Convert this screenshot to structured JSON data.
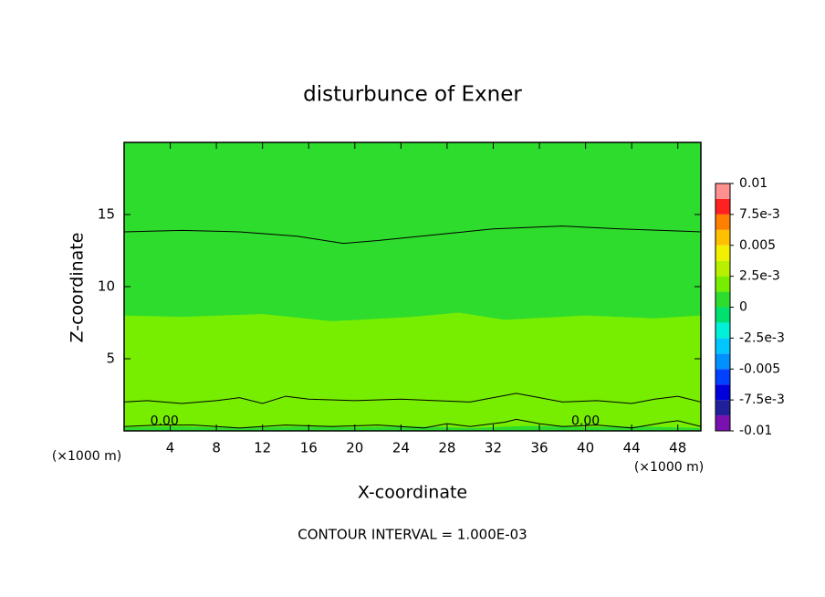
{
  "chart_data": {
    "type": "contour",
    "title": "disturbunce of Exner",
    "x_label": "X-coordinate",
    "y_label": "Z-coordinate",
    "x_unit": "(×1000 m)",
    "footer": "CONTOUR INTERVAL = 1.000E-03",
    "xlim": [
      0,
      50
    ],
    "ylim": [
      0,
      20
    ],
    "xticks": [
      4,
      8,
      12,
      16,
      20,
      24,
      28,
      32,
      36,
      40,
      44,
      48
    ],
    "yticks": [
      5,
      10,
      15
    ],
    "colorbar": {
      "levels": [
        -0.01,
        -0.00875,
        -0.0075,
        -0.00625,
        -0.005,
        -0.00375,
        -0.0025,
        -0.00125,
        0,
        0.00125,
        0.0025,
        0.00375,
        0.005,
        0.00625,
        0.0075,
        0.00875,
        0.01
      ],
      "colors": [
        "#7a10b0",
        "#20209a",
        "#0000dd",
        "#0040ff",
        "#0090ff",
        "#00c8ff",
        "#00f0d8",
        "#00e070",
        "#2edc2e",
        "#77ee00",
        "#b8f000",
        "#f0f000",
        "#ffc000",
        "#ff8000",
        "#ff2020",
        "#ff9090"
      ],
      "ticks": [
        0.01,
        {
          "value": 0.0075,
          "label": "7.5e-3"
        },
        0.005,
        {
          "value": 0.0025,
          "label": "2.5e-3"
        },
        0,
        {
          "value": -0.0025,
          "label": "-2.5e-3"
        },
        -0.005,
        {
          "value": -0.0075,
          "label": "-7.5e-3"
        },
        -0.01
      ]
    },
    "regions": [
      {
        "value": 0.0005,
        "x": [
          0,
          50,
          50,
          0
        ],
        "y": [
          0,
          0,
          20,
          20
        ]
      },
      {
        "value": 0.0018,
        "x": [
          0,
          5,
          12,
          18,
          25,
          29,
          33,
          40,
          46,
          50,
          50,
          0
        ],
        "y": [
          8.0,
          7.9,
          8.1,
          7.6,
          7.9,
          8.2,
          7.7,
          8.0,
          7.8,
          8.0,
          0,
          0
        ]
      },
      {
        "value": 0.0005,
        "x": [
          0,
          5,
          10,
          15,
          20,
          25,
          30,
          35,
          40,
          45,
          50,
          50,
          0
        ],
        "y": [
          0.25,
          0.3,
          0.2,
          0.3,
          0.25,
          0.3,
          0.2,
          0.35,
          0.25,
          0.3,
          0.2,
          0,
          0
        ]
      }
    ],
    "contours": [
      {
        "x": [
          0,
          5,
          10,
          15,
          19,
          22,
          27,
          32,
          38,
          43,
          50
        ],
        "y": [
          13.8,
          13.9,
          13.8,
          13.5,
          13.0,
          13.2,
          13.6,
          14.0,
          14.2,
          14.0,
          13.8
        ]
      },
      {
        "x": [
          0,
          2,
          5,
          8,
          10,
          12,
          14,
          16,
          20,
          24,
          27,
          30,
          32,
          34,
          36,
          38,
          41,
          44,
          46,
          48,
          50
        ],
        "y": [
          2.0,
          2.1,
          1.9,
          2.1,
          2.3,
          1.9,
          2.4,
          2.2,
          2.1,
          2.2,
          2.1,
          2.0,
          2.3,
          2.6,
          2.3,
          2.0,
          2.1,
          1.9,
          2.2,
          2.4,
          2.0
        ]
      },
      {
        "x": [
          0,
          3,
          6,
          10,
          14,
          18,
          22,
          26,
          28,
          30,
          33,
          34,
          36,
          38,
          41,
          44,
          47,
          48,
          50
        ],
        "y": [
          0.3,
          0.4,
          0.4,
          0.2,
          0.4,
          0.3,
          0.4,
          0.2,
          0.5,
          0.3,
          0.6,
          0.8,
          0.5,
          0.3,
          0.4,
          0.2,
          0.6,
          0.7,
          0.3
        ]
      }
    ],
    "contour_labels": [
      {
        "x": 3.5,
        "y": 0.35,
        "level": {
          "value": 0,
          "label": "0.00"
        }
      },
      {
        "x": 40,
        "y": 0.35,
        "level": {
          "value": 0,
          "label": "0.00"
        }
      }
    ]
  }
}
